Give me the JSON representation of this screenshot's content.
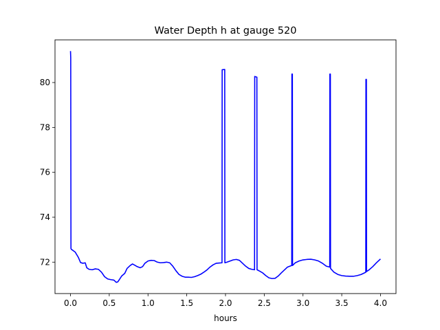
{
  "chart_data": {
    "type": "line",
    "title": "Water Depth h at gauge 520",
    "xlabel": "hours",
    "ylabel": "",
    "xlim": [
      -0.2,
      4.2
    ],
    "ylim": [
      70.6,
      81.9
    ],
    "xticks": [
      0.0,
      0.5,
      1.0,
      1.5,
      2.0,
      2.5,
      3.0,
      3.5,
      4.0
    ],
    "xtick_labels": [
      "0.0",
      "0.5",
      "1.0",
      "1.5",
      "2.0",
      "2.5",
      "3.0",
      "3.5",
      "4.0"
    ],
    "yticks": [
      72,
      74,
      76,
      78,
      80
    ],
    "ytick_labels": [
      "72",
      "74",
      "76",
      "78",
      "80"
    ],
    "grid": false,
    "legend": "none",
    "series": [
      {
        "color": "#0000ff",
        "x": [
          0.0,
          0.003,
          0.006,
          0.012,
          0.06,
          0.1,
          0.13,
          0.16,
          0.19,
          0.21,
          0.24,
          0.28,
          0.32,
          0.36,
          0.4,
          0.44,
          0.48,
          0.52,
          0.56,
          0.59,
          0.61,
          0.63,
          0.66,
          0.7,
          0.73,
          0.77,
          0.8,
          0.83,
          0.86,
          0.9,
          0.93,
          0.96,
          1.0,
          1.04,
          1.08,
          1.12,
          1.16,
          1.2,
          1.24,
          1.28,
          1.32,
          1.36,
          1.4,
          1.44,
          1.48,
          1.52,
          1.56,
          1.6,
          1.64,
          1.68,
          1.72,
          1.76,
          1.8,
          1.84,
          1.88,
          1.92,
          1.955,
          1.957,
          1.99,
          1.992,
          2.02,
          2.06,
          2.1,
          2.14,
          2.18,
          2.22,
          2.26,
          2.3,
          2.34,
          2.375,
          2.377,
          2.405,
          2.407,
          2.44,
          2.48,
          2.52,
          2.56,
          2.6,
          2.64,
          2.68,
          2.72,
          2.76,
          2.8,
          2.855,
          2.857,
          2.863,
          2.865,
          2.9,
          2.95,
          3.0,
          3.05,
          3.1,
          3.15,
          3.2,
          3.25,
          3.3,
          3.345,
          3.347,
          3.353,
          3.355,
          3.4,
          3.45,
          3.5,
          3.55,
          3.6,
          3.65,
          3.7,
          3.75,
          3.81,
          3.812,
          3.818,
          3.82,
          3.85,
          3.9,
          3.95,
          4.0
        ],
        "y": [
          81.4,
          81.1,
          72.6,
          72.57,
          72.45,
          72.22,
          71.98,
          71.95,
          71.97,
          71.75,
          71.68,
          71.66,
          71.7,
          71.68,
          71.55,
          71.35,
          71.25,
          71.22,
          71.2,
          71.1,
          71.12,
          71.22,
          71.38,
          71.5,
          71.72,
          71.85,
          71.92,
          71.86,
          71.8,
          71.75,
          71.8,
          71.95,
          72.05,
          72.08,
          72.07,
          72.0,
          71.97,
          71.98,
          72.0,
          71.97,
          71.82,
          71.62,
          71.45,
          71.37,
          71.33,
          71.33,
          71.32,
          71.35,
          71.4,
          71.46,
          71.55,
          71.65,
          71.78,
          71.88,
          71.95,
          71.96,
          71.97,
          80.57,
          80.58,
          71.97,
          72.0,
          72.05,
          72.1,
          72.12,
          72.08,
          71.95,
          71.82,
          71.72,
          71.68,
          71.66,
          80.27,
          80.24,
          71.66,
          71.6,
          71.52,
          71.4,
          71.3,
          71.27,
          71.28,
          71.38,
          71.52,
          71.65,
          71.78,
          71.85,
          80.38,
          80.38,
          71.85,
          71.97,
          72.05,
          72.1,
          72.12,
          72.13,
          72.1,
          72.05,
          71.95,
          71.82,
          71.78,
          80.38,
          80.38,
          71.72,
          71.55,
          71.45,
          71.4,
          71.38,
          71.37,
          71.37,
          71.4,
          71.45,
          71.55,
          80.14,
          80.14,
          71.58,
          71.65,
          71.8,
          71.98,
          72.14
        ]
      }
    ]
  }
}
